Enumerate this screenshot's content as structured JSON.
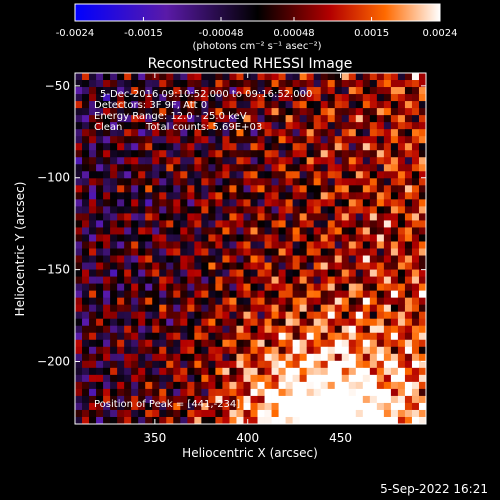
{
  "window": {
    "timestamp": "5-Sep-2022 16:21"
  },
  "colorbar": {
    "tick_labels": [
      "-0.0024",
      "-0.0015",
      "-0.00048",
      "0.00048",
      "0.0015",
      "0.0024"
    ],
    "unit_label": "(photons cm⁻² s⁻¹ asec⁻²)",
    "range": [
      -0.0024,
      0.0024
    ],
    "colors": [
      "#0000ff",
      "#5a1aa8",
      "#000000",
      "#b40000",
      "#ff6a00",
      "#ffffff"
    ]
  },
  "chart_data": {
    "type": "heatmap",
    "title": "Reconstructed RHESSI Image",
    "xlabel": "Heliocentric X (arcsec)",
    "ylabel": "Heliocentric Y (arcsec)",
    "xlim": [
      307,
      496
    ],
    "ylim": [
      -234,
      -43
    ],
    "x_ticks": [
      350,
      400,
      450
    ],
    "y_ticks": [
      -50,
      -100,
      -150,
      -200
    ],
    "x_tick_labels": [
      "350",
      "400",
      "450"
    ],
    "y_tick_labels": [
      "−50",
      "−100",
      "−150",
      "−200"
    ],
    "peak": [
      441,
      -234
    ],
    "annotations": [
      "5-Dec-2016 09:10:52.000 to 09:16:52.000",
      "Detectors: 3F 9F, Att 0",
      "Energy Range: 12.0 - 25.0 keV",
      "Clean",
      "Total counts: 5.69E+03",
      "Position of Peak = [441,-234]"
    ]
  }
}
